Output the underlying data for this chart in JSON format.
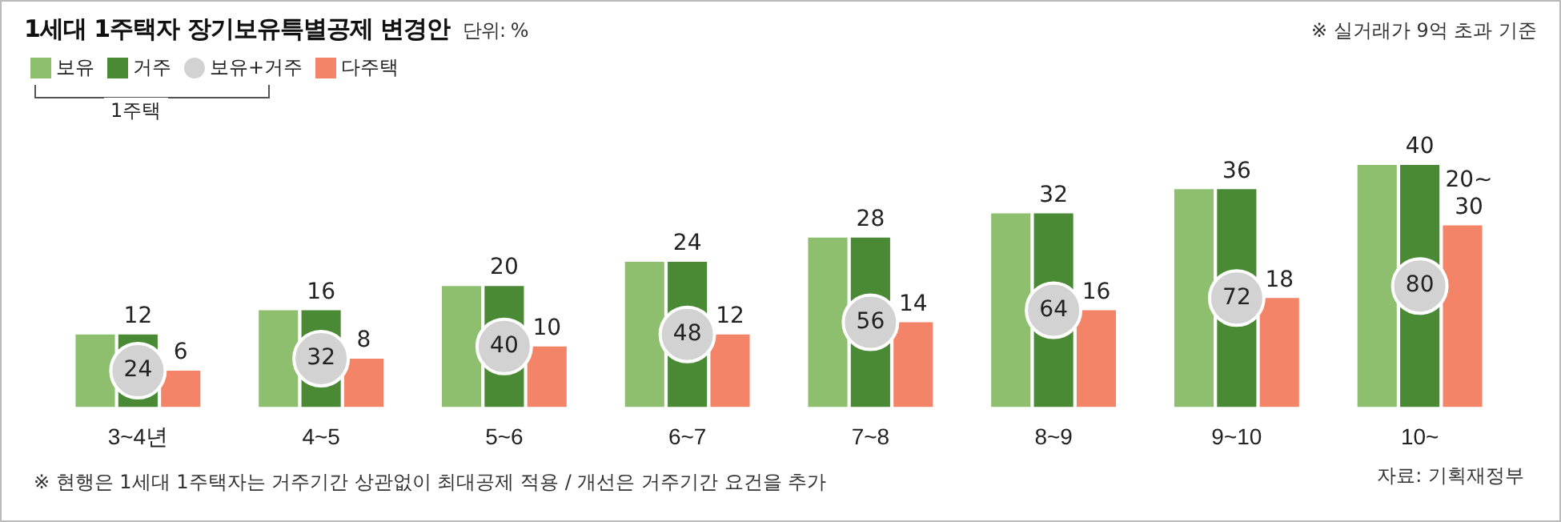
{
  "chart_data": {
    "type": "bar",
    "title": "1세대 1주택자 장기보유특별공제 변경안",
    "subtitle": "단위: %",
    "categories": [
      "3~4년",
      "4~5",
      "5~6",
      "6~7",
      "7~8",
      "8~9",
      "9~10",
      "10~"
    ],
    "series": [
      {
        "name": "보유",
        "color": "#8dbf6e",
        "values": [
          12,
          16,
          20,
          24,
          28,
          32,
          36,
          40
        ],
        "value_labels": [
          null,
          null,
          null,
          null,
          null,
          null,
          null,
          null
        ]
      },
      {
        "name": "거주",
        "color": "#4a8a35",
        "values": [
          12,
          16,
          20,
          24,
          28,
          32,
          36,
          40
        ]
      },
      {
        "name": "보유+거주",
        "type": "scatter",
        "axis": "y2",
        "color": "#d2d2d2",
        "x": [
          "3~4년",
          "4~5",
          "5~6",
          "6~7",
          "7~8",
          "8~9",
          "9~10",
          "10~"
        ],
        "values": [
          24,
          32,
          40,
          48,
          56,
          64,
          72,
          80
        ]
      },
      {
        "name": "다주택",
        "color": "#f38468",
        "values": [
          6,
          8,
          10,
          12,
          14,
          16,
          18,
          30
        ],
        "value_labels": [
          "6",
          "8",
          "10",
          "12",
          "14",
          "16",
          "18",
          "20~ 30"
        ]
      }
    ],
    "data_labels": true,
    "marker": "circle",
    "legend": "top left",
    "grid": false,
    "tick_labels": "x",
    "annotations": [
      "1주택",
      "※ 실거래가 9억 초과 기준",
      "※ 현행은 1세대 1주택자는 거주기간 상관없이 최대공제 적용  / 개선은 거주기간 요건을 추가",
      "자료: 기획재정부"
    ]
  }
}
